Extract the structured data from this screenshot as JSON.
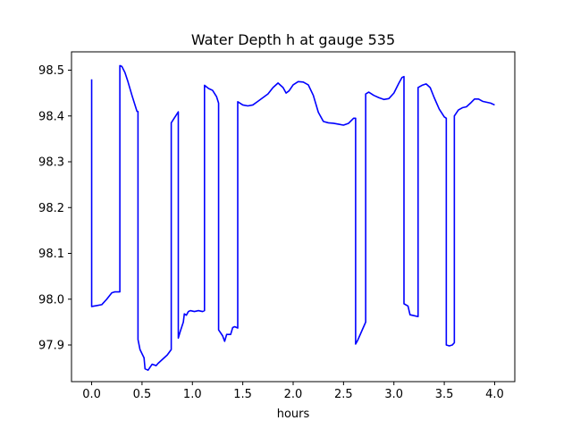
{
  "chart_data": {
    "type": "line",
    "title": "Water Depth h at gauge 535",
    "xlabel": "hours",
    "ylabel": "",
    "xlim": [
      -0.2,
      4.2
    ],
    "ylim": [
      97.82,
      98.54
    ],
    "xticks": [
      0.0,
      0.5,
      1.0,
      1.5,
      2.0,
      2.5,
      3.0,
      3.5,
      4.0
    ],
    "xtick_labels": [
      "0.0",
      "0.5",
      "1.0",
      "1.5",
      "2.0",
      "2.5",
      "3.0",
      "3.5",
      "4.0"
    ],
    "yticks": [
      97.9,
      98.0,
      98.1,
      98.2,
      98.3,
      98.4,
      98.5
    ],
    "ytick_labels": [
      "97.9",
      "98.0",
      "98.1",
      "98.2",
      "98.3",
      "98.4",
      "98.5"
    ],
    "grid": false,
    "series": [
      {
        "color": "#0000ff",
        "x": [
          0.0,
          0.0,
          0.05,
          0.1,
          0.15,
          0.2,
          0.23,
          0.28,
          0.28,
          0.3,
          0.33,
          0.36,
          0.4,
          0.45,
          0.46,
          0.46,
          0.48,
          0.52,
          0.53,
          0.56,
          0.6,
          0.64,
          0.66,
          0.7,
          0.75,
          0.79,
          0.79,
          0.86,
          0.86,
          0.88,
          0.91,
          0.92,
          0.94,
          0.96,
          0.98,
          1.02,
          1.06,
          1.1,
          1.12,
          1.12,
          1.16,
          1.2,
          1.24,
          1.26,
          1.26,
          1.3,
          1.32,
          1.34,
          1.38,
          1.4,
          1.42,
          1.45,
          1.45,
          1.5,
          1.55,
          1.6,
          1.65,
          1.7,
          1.75,
          1.8,
          1.85,
          1.9,
          1.93,
          1.96,
          2.0,
          2.05,
          2.1,
          2.15,
          2.2,
          2.25,
          2.3,
          2.35,
          2.4,
          2.45,
          2.5,
          2.55,
          2.6,
          2.62,
          2.62,
          2.64,
          2.68,
          2.72,
          2.72,
          2.75,
          2.8,
          2.85,
          2.9,
          2.95,
          3.0,
          3.05,
          3.08,
          3.1,
          3.1,
          3.14,
          3.16,
          3.2,
          3.24,
          3.24,
          3.28,
          3.32,
          3.36,
          3.4,
          3.45,
          3.5,
          3.52,
          3.52,
          3.55,
          3.58,
          3.6,
          3.6,
          3.64,
          3.68,
          3.72,
          3.76,
          3.8,
          3.84,
          3.88,
          3.92,
          3.96,
          4.0
        ],
        "values": [
          98.48,
          97.984,
          97.986,
          97.988,
          98.0,
          98.014,
          98.016,
          98.016,
          98.51,
          98.508,
          98.495,
          98.475,
          98.445,
          98.41,
          98.41,
          97.912,
          97.89,
          97.872,
          97.848,
          97.845,
          97.858,
          97.855,
          97.86,
          97.868,
          97.878,
          97.89,
          98.385,
          98.409,
          97.915,
          97.93,
          97.95,
          97.968,
          97.965,
          97.973,
          97.975,
          97.973,
          97.975,
          97.973,
          97.975,
          98.467,
          98.46,
          98.456,
          98.442,
          98.428,
          97.933,
          97.92,
          97.908,
          97.923,
          97.923,
          97.938,
          97.94,
          97.937,
          98.431,
          98.424,
          98.422,
          98.424,
          98.432,
          98.44,
          98.448,
          98.462,
          98.472,
          98.462,
          98.45,
          98.455,
          98.468,
          98.475,
          98.474,
          98.468,
          98.445,
          98.408,
          98.388,
          98.385,
          98.384,
          98.382,
          98.38,
          98.384,
          98.395,
          98.395,
          97.902,
          97.91,
          97.93,
          97.95,
          98.448,
          98.452,
          98.445,
          98.44,
          98.436,
          98.438,
          98.45,
          98.472,
          98.484,
          98.486,
          97.99,
          97.985,
          97.966,
          97.964,
          97.962,
          98.462,
          98.467,
          98.47,
          98.462,
          98.44,
          98.415,
          98.398,
          98.395,
          97.9,
          97.898,
          97.9,
          97.905,
          98.4,
          98.413,
          98.418,
          98.42,
          98.428,
          98.437,
          98.437,
          98.432,
          98.43,
          98.428,
          98.424
        ]
      }
    ]
  }
}
